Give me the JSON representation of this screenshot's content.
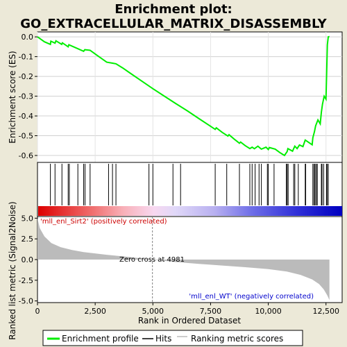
{
  "chart_data": {
    "type": "line",
    "title": "Enrichment plot:",
    "subtitle": "GO_EXTRACELLULAR_MATRIX_DISASSEMBLY",
    "top_panel": {
      "ylabel": "Enrichment score (ES)",
      "ylim": [
        -0.635,
        0.025
      ],
      "yticks": [
        0.0,
        -0.1,
        -0.2,
        -0.3,
        -0.4,
        -0.5,
        -0.6
      ],
      "ytick_labels": [
        "0.0",
        "-0.1",
        "-0.2",
        "-0.3",
        "-0.4",
        "-0.5",
        "-0.6"
      ],
      "grid": true,
      "series": [
        {
          "color": "#00ee00",
          "points": [
            [
              0,
              0.0
            ],
            [
              300,
              -0.025
            ],
            [
              560,
              -0.038
            ],
            [
              580,
              -0.022
            ],
            [
              760,
              -0.032
            ],
            [
              800,
              -0.02
            ],
            [
              1050,
              -0.038
            ],
            [
              1080,
              -0.03
            ],
            [
              1330,
              -0.05
            ],
            [
              1360,
              -0.04
            ],
            [
              1750,
              -0.06
            ],
            [
              2000,
              -0.073
            ],
            [
              2050,
              -0.065
            ],
            [
              2280,
              -0.068
            ],
            [
              2600,
              -0.095
            ],
            [
              3000,
              -0.128
            ],
            [
              3250,
              -0.133
            ],
            [
              3400,
              -0.136
            ],
            [
              3700,
              -0.158
            ],
            [
              4000,
              -0.182
            ],
            [
              4500,
              -0.222
            ],
            [
              5000,
              -0.262
            ],
            [
              5500,
              -0.3
            ],
            [
              6000,
              -0.338
            ],
            [
              6500,
              -0.375
            ],
            [
              7000,
              -0.414
            ],
            [
              7500,
              -0.452
            ],
            [
              7700,
              -0.468
            ],
            [
              7750,
              -0.46
            ],
            [
              8000,
              -0.483
            ],
            [
              8250,
              -0.502
            ],
            [
              8300,
              -0.495
            ],
            [
              8500,
              -0.515
            ],
            [
              8750,
              -0.538
            ],
            [
              8800,
              -0.532
            ],
            [
              9000,
              -0.55
            ],
            [
              9200,
              -0.565
            ],
            [
              9300,
              -0.558
            ],
            [
              9400,
              -0.566
            ],
            [
              9550,
              -0.553
            ],
            [
              9700,
              -0.568
            ],
            [
              9900,
              -0.558
            ],
            [
              10000,
              -0.57
            ],
            [
              10050,
              -0.56
            ],
            [
              10300,
              -0.568
            ],
            [
              10500,
              -0.585
            ],
            [
              10700,
              -0.6
            ],
            [
              10820,
              -0.58
            ],
            [
              10850,
              -0.565
            ],
            [
              11050,
              -0.578
            ],
            [
              11150,
              -0.553
            ],
            [
              11250,
              -0.565
            ],
            [
              11350,
              -0.547
            ],
            [
              11500,
              -0.555
            ],
            [
              11600,
              -0.522
            ],
            [
              11900,
              -0.546
            ],
            [
              11930,
              -0.51
            ],
            [
              12000,
              -0.48
            ],
            [
              12050,
              -0.45
            ],
            [
              12150,
              -0.42
            ],
            [
              12250,
              -0.44
            ],
            [
              12300,
              -0.38
            ],
            [
              12350,
              -0.34
            ],
            [
              12420,
              -0.3
            ],
            [
              12500,
              -0.315
            ],
            [
              12530,
              -0.18
            ],
            [
              12560,
              -0.04
            ],
            [
              12600,
              0.0
            ],
            [
              12650,
              0.002
            ]
          ]
        }
      ]
    },
    "hits": [
      560,
      760,
      1060,
      1330,
      1380,
      1750,
      2000,
      2060,
      2280,
      3080,
      3250,
      3400,
      4830,
      5000,
      5870,
      6200,
      7700,
      8200,
      8750,
      9200,
      9300,
      9430,
      9600,
      9700,
      9960,
      10000,
      10250,
      10780,
      10820,
      10860,
      11100,
      11150,
      11300,
      11600,
      11620,
      11930,
      11980,
      12000,
      12050,
      12100,
      12120,
      12300,
      12330,
      12400,
      12520,
      12550,
      12600
    ],
    "bottom_panel": {
      "ylabel": "Ranked list metric (Signal2Noise)",
      "ylim": [
        -5.2,
        5.2
      ],
      "yticks": [
        5.0,
        2.5,
        0.0,
        -2.5,
        -5.0
      ],
      "ytick_labels": [
        "5.0",
        "2.5",
        "0.0",
        "-2.5",
        "-5.0"
      ],
      "xlabel": "Rank in Ordered Dataset",
      "xlim": [
        0,
        13200
      ],
      "xticks": [
        0,
        2500,
        5000,
        7500,
        10000,
        12500
      ],
      "xtick_labels": [
        "0",
        "2,500",
        "5,000",
        "7,500",
        "10,000",
        "12,500"
      ],
      "metric_points": [
        [
          0,
          5.0
        ],
        [
          100,
          3.8
        ],
        [
          300,
          2.8
        ],
        [
          600,
          2.0
        ],
        [
          1000,
          1.5
        ],
        [
          1500,
          1.15
        ],
        [
          2000,
          0.9
        ],
        [
          3000,
          0.58
        ],
        [
          4000,
          0.3
        ],
        [
          4981,
          0.0
        ],
        [
          6000,
          -0.3
        ],
        [
          7000,
          -0.52
        ],
        [
          8000,
          -0.72
        ],
        [
          9000,
          -0.92
        ],
        [
          10000,
          -1.15
        ],
        [
          10800,
          -1.45
        ],
        [
          11400,
          -1.85
        ],
        [
          11900,
          -2.4
        ],
        [
          12200,
          -2.95
        ],
        [
          12400,
          -3.6
        ],
        [
          12550,
          -4.3
        ],
        [
          12650,
          -4.9
        ]
      ],
      "zero_cross": 4981,
      "zero_cross_label": "Zero cross at 4981",
      "pos_label": "'mll_enl_Sirt2' (positively correlated)",
      "neg_label": "'mll_enl_WT' (negatively correlated)"
    },
    "legend": {
      "placement": "bottom",
      "entries": [
        {
          "label": "Enrichment profile",
          "color": "#00ee00"
        },
        {
          "label": "Hits",
          "color": "#000000"
        },
        {
          "label": "Ranking metric scores",
          "color": "#bbbbbb"
        }
      ]
    },
    "colors": {
      "profile": "#00ee00",
      "metric_fill": "#bbbbbb",
      "pos_label": "#cc0000",
      "neg_label": "#0000cc",
      "zero_line": "#808080"
    }
  }
}
